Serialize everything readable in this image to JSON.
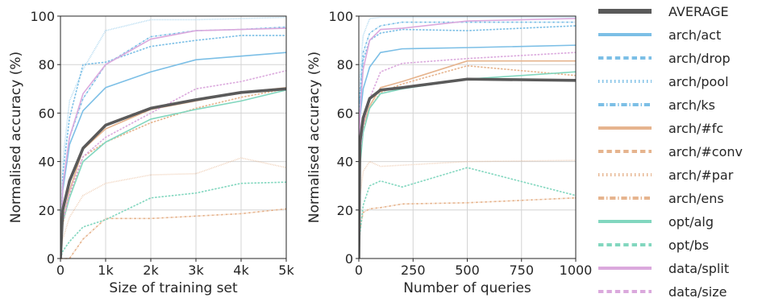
{
  "chart_data": [
    {
      "type": "line",
      "xlabel": "Size of training set",
      "ylabel": "Normalised accuracy (%)",
      "xlim": [
        0,
        5000
      ],
      "ylim": [
        0,
        100
      ],
      "xticks": [
        0,
        1000,
        2000,
        3000,
        4000,
        5000
      ],
      "xtick_labels": [
        "0",
        "1k",
        "2k",
        "3k",
        "4k",
        "5k"
      ],
      "yticks": [
        0,
        20,
        40,
        60,
        80,
        100
      ],
      "ytick_labels": [
        "0",
        "20",
        "40",
        "60",
        "80",
        "100"
      ],
      "grid": true,
      "series": [
        {
          "name": "AVERAGE",
          "x": [
            0,
            50,
            200,
            500,
            1000,
            2000,
            3000,
            4000,
            5000
          ],
          "y": [
            0,
            20,
            32,
            45.5,
            55,
            62,
            65.5,
            68.5,
            70
          ]
        },
        {
          "name": "arch/act",
          "x": [
            0,
            50,
            200,
            500,
            1000,
            2000,
            3000,
            4000,
            5000
          ],
          "y": [
            0,
            28,
            47,
            61,
            70.5,
            77,
            82,
            83.5,
            85
          ]
        },
        {
          "name": "arch/drop",
          "x": [
            0,
            50,
            200,
            500,
            1000,
            2000,
            3000,
            4000,
            5000
          ],
          "y": [
            0,
            35,
            58,
            80,
            81,
            87.5,
            90,
            92,
            92
          ]
        },
        {
          "name": "arch/pool",
          "x": [
            0,
            50,
            200,
            500,
            1000,
            2000,
            3000,
            4000,
            5000
          ],
          "y": [
            0,
            40,
            65,
            78,
            94,
            98.5,
            98.5,
            99,
            99.5
          ]
        },
        {
          "name": "arch/ks",
          "x": [
            0,
            50,
            200,
            500,
            1000,
            2000,
            3000,
            4000,
            5000
          ],
          "y": [
            0,
            30,
            50,
            66,
            80,
            91.5,
            94,
            94.5,
            95.5
          ]
        },
        {
          "name": "arch/#fc",
          "x": [
            0,
            50,
            200,
            500,
            1000,
            2000,
            3000,
            4000,
            5000
          ],
          "y": [
            0,
            15,
            28,
            45,
            53.5,
            61.5,
            65,
            68.5,
            70.5
          ]
        },
        {
          "name": "arch/#conv",
          "x": [
            0,
            50,
            200,
            500,
            1000,
            2000,
            3000,
            4000,
            5000
          ],
          "y": [
            0,
            14,
            26,
            42,
            48,
            56,
            62,
            66.5,
            70
          ]
        },
        {
          "name": "arch/#par",
          "x": [
            0,
            50,
            200,
            500,
            1000,
            2000,
            3000,
            4000,
            5000
          ],
          "y": [
            0,
            8,
            17,
            26,
            31,
            34.5,
            35,
            41.5,
            37.5
          ]
        },
        {
          "name": "arch/ens",
          "x": [
            0,
            200,
            500,
            1000,
            2000,
            3000,
            4000,
            5000
          ],
          "y": [
            0,
            0,
            8,
            16.5,
            16.5,
            17.5,
            18.5,
            20.5
          ]
        },
        {
          "name": "opt/alg",
          "x": [
            0,
            50,
            200,
            500,
            1000,
            2000,
            3000,
            4000,
            5000
          ],
          "y": [
            0,
            15,
            25,
            40,
            48,
            57.5,
            61.5,
            65,
            69.5
          ]
        },
        {
          "name": "opt/bs",
          "x": [
            0,
            50,
            200,
            500,
            1000,
            2000,
            3000,
            4000,
            5000
          ],
          "y": [
            0,
            3,
            7,
            13,
            16,
            25,
            27,
            31,
            31.5
          ]
        },
        {
          "name": "data/split",
          "x": [
            0,
            50,
            200,
            500,
            1000,
            2000,
            3000,
            4000,
            5000
          ],
          "y": [
            0,
            30,
            50,
            68,
            80,
            90.5,
            94,
            94.5,
            95
          ]
        },
        {
          "name": "data/size",
          "x": [
            0,
            50,
            200,
            500,
            1000,
            2000,
            3000,
            4000,
            5000
          ],
          "y": [
            0,
            15,
            27,
            42,
            50,
            60,
            70,
            73,
            77.5
          ]
        }
      ]
    },
    {
      "type": "line",
      "xlabel": "Number of queries",
      "ylabel": "Normalised accuracy (%)",
      "xlim": [
        0,
        1000
      ],
      "ylim": [
        0,
        100
      ],
      "xticks": [
        0,
        250,
        500,
        750,
        1000
      ],
      "xtick_labels": [
        "0",
        "250",
        "500",
        "750",
        "1000"
      ],
      "yticks": [
        0,
        20,
        40,
        60,
        80,
        100
      ],
      "ytick_labels": [
        "0",
        "20",
        "40",
        "60",
        "80",
        "100"
      ],
      "grid": true,
      "series": [
        {
          "name": "AVERAGE",
          "x": [
            0,
            5,
            20,
            50,
            100,
            200,
            500,
            1000
          ],
          "y": [
            0,
            48,
            58,
            66,
            69.5,
            70.5,
            74,
            73.5
          ]
        },
        {
          "name": "arch/act",
          "x": [
            0,
            5,
            20,
            50,
            100,
            200,
            500,
            1000
          ],
          "y": [
            0,
            58,
            70,
            79,
            85,
            86.5,
            87,
            88
          ]
        },
        {
          "name": "arch/drop",
          "x": [
            0,
            5,
            20,
            50,
            100,
            200,
            500,
            1000
          ],
          "y": [
            0,
            65,
            82,
            90,
            93,
            94.5,
            94,
            96
          ]
        },
        {
          "name": "arch/pool",
          "x": [
            0,
            5,
            20,
            50,
            100,
            200,
            500,
            1000
          ],
          "y": [
            0,
            75,
            92,
            99,
            99.5,
            99.5,
            99.5,
            99.5
          ]
        },
        {
          "name": "arch/ks",
          "x": [
            0,
            5,
            20,
            50,
            100,
            200,
            500,
            1000
          ],
          "y": [
            0,
            68,
            85,
            93,
            96,
            97.5,
            97.5,
            97.5
          ]
        },
        {
          "name": "arch/#fc",
          "x": [
            0,
            5,
            20,
            50,
            100,
            200,
            500,
            1000
          ],
          "y": [
            0,
            42,
            55,
            63,
            70.5,
            73,
            81.5,
            81.5
          ]
        },
        {
          "name": "arch/#conv",
          "x": [
            0,
            5,
            20,
            50,
            100,
            200,
            500,
            1000
          ],
          "y": [
            0,
            40,
            53,
            62,
            68.5,
            72,
            79.5,
            75.5
          ]
        },
        {
          "name": "arch/#par",
          "x": [
            0,
            5,
            20,
            50,
            100,
            200,
            500,
            1000
          ],
          "y": [
            0,
            25,
            36,
            40,
            38,
            38.5,
            40,
            40.5
          ]
        },
        {
          "name": "arch/ens",
          "x": [
            0,
            5,
            20,
            50,
            100,
            200,
            500,
            1000
          ],
          "y": [
            0,
            12,
            19,
            20.5,
            21,
            22.5,
            23,
            25
          ]
        },
        {
          "name": "opt/alg",
          "x": [
            0,
            5,
            20,
            50,
            100,
            200,
            500,
            1000
          ],
          "y": [
            0,
            38,
            52,
            62,
            68,
            70,
            74,
            77
          ]
        },
        {
          "name": "opt/bs",
          "x": [
            0,
            5,
            20,
            50,
            100,
            200,
            500,
            1000
          ],
          "y": [
            0,
            10,
            22,
            30,
            32,
            29.5,
            37.5,
            26
          ]
        },
        {
          "name": "data/split",
          "x": [
            0,
            5,
            20,
            50,
            100,
            200,
            500,
            1000
          ],
          "y": [
            0,
            60,
            78,
            90,
            94.5,
            95,
            98,
            99
          ]
        },
        {
          "name": "data/size",
          "x": [
            0,
            5,
            20,
            50,
            100,
            200,
            500,
            1000
          ],
          "y": [
            0,
            42,
            55,
            66,
            77,
            80.5,
            82.5,
            85
          ]
        }
      ]
    }
  ],
  "legend": {
    "placement": "right",
    "entries": [
      {
        "name": "AVERAGE",
        "color": "#5a5a5a",
        "style": "solid",
        "width": 6
      },
      {
        "name": "arch/act",
        "color": "#7cbfe6",
        "style": "solid",
        "width": 4
      },
      {
        "name": "arch/drop",
        "color": "#7cbfe6",
        "style": "dashed",
        "width": 4
      },
      {
        "name": "arch/pool",
        "color": "#7cbfe6",
        "style": "dotted",
        "width": 4
      },
      {
        "name": "arch/ks",
        "color": "#7cbfe6",
        "style": "dashdot",
        "width": 4
      },
      {
        "name": "arch/#fc",
        "color": "#e6b48e",
        "style": "solid",
        "width": 4
      },
      {
        "name": "arch/#conv",
        "color": "#e6b48e",
        "style": "dashed",
        "width": 4
      },
      {
        "name": "arch/#par",
        "color": "#e6b48e",
        "style": "dotted",
        "width": 4
      },
      {
        "name": "arch/ens",
        "color": "#e6b48e",
        "style": "dashdot",
        "width": 4
      },
      {
        "name": "opt/alg",
        "color": "#82d7bf",
        "style": "solid",
        "width": 4
      },
      {
        "name": "opt/bs",
        "color": "#82d7bf",
        "style": "dashed",
        "width": 4
      },
      {
        "name": "data/split",
        "color": "#dba9dd",
        "style": "solid",
        "width": 4
      },
      {
        "name": "data/size",
        "color": "#dba9dd",
        "style": "dashed",
        "width": 4
      }
    ]
  }
}
